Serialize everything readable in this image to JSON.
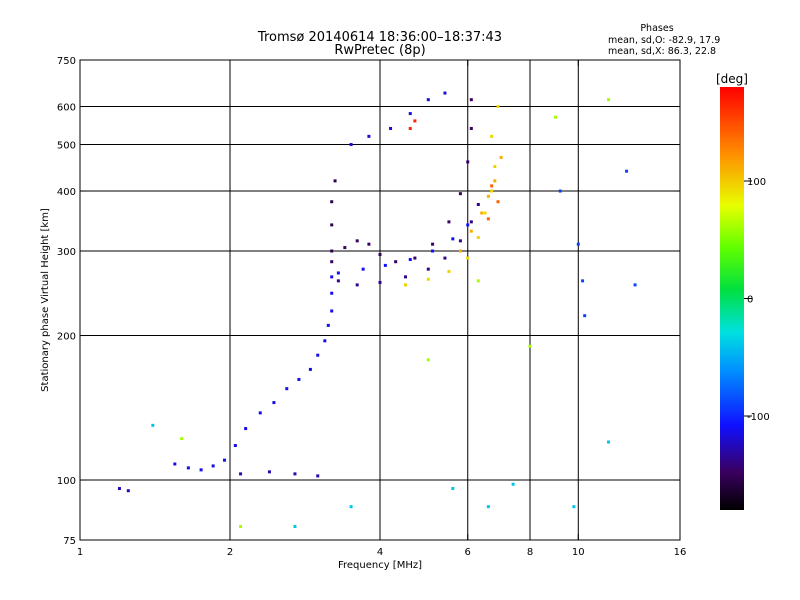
{
  "chart_data": {
    "type": "scatter",
    "title": "Tromsø 20140614 18:36:00–18:37:43",
    "subtitle": "RwPretec (8p)",
    "xlabel": "Frequency [MHz]",
    "ylabel": "Stationary phase Virtual Height [km]",
    "x_scale": "log",
    "y_scale": "log",
    "xlim": [
      1,
      16
    ],
    "ylim": [
      75,
      750
    ],
    "x_ticks": [
      1,
      2,
      4,
      6,
      8,
      10,
      16
    ],
    "y_ticks": [
      75,
      100,
      200,
      300,
      400,
      500,
      600,
      750
    ],
    "x_grid": [
      2,
      4,
      6,
      8,
      10
    ],
    "y_grid": [
      100,
      200,
      300,
      400,
      500,
      600
    ],
    "grid": true,
    "stats": {
      "heading": "Phases",
      "line_o": "mean, sd,O: -82.9, 17.9",
      "line_x": "mean, sd,X: 86.3, 22.8"
    },
    "colorbar": {
      "label": "[deg]",
      "min": -180,
      "max": 180,
      "ticks": [
        100,
        0,
        -100
      ]
    },
    "traces": [
      {
        "name": "",
        "phase_deg": -115,
        "points": [
          [
            1.55,
            108
          ],
          [
            1.65,
            106
          ],
          [
            1.75,
            105
          ],
          [
            1.85,
            107
          ],
          [
            1.95,
            110
          ],
          [
            2.05,
            118
          ],
          [
            2.15,
            128
          ],
          [
            2.3,
            138
          ],
          [
            2.45,
            145
          ],
          [
            2.6,
            155
          ],
          [
            2.75,
            162
          ],
          [
            2.9,
            170
          ],
          [
            3.0,
            182
          ],
          [
            3.1,
            195
          ],
          [
            3.15,
            210
          ],
          [
            3.2,
            225
          ],
          [
            3.2,
            245
          ],
          [
            3.2,
            265
          ]
        ]
      },
      {
        "name": "",
        "phase_deg": -130,
        "points": [
          [
            1.2,
            96
          ],
          [
            1.25,
            95
          ],
          [
            2.1,
            103
          ],
          [
            2.4,
            104
          ],
          [
            2.7,
            103
          ],
          [
            3.0,
            102
          ]
        ]
      },
      {
        "name": "",
        "phase_deg": -150,
        "points": [
          [
            3.2,
            285
          ],
          [
            3.4,
            305
          ],
          [
            3.6,
            315
          ],
          [
            3.8,
            310
          ],
          [
            4.0,
            295
          ],
          [
            4.3,
            285
          ],
          [
            4.7,
            290
          ],
          [
            5.1,
            310
          ],
          [
            5.5,
            345
          ],
          [
            5.8,
            395
          ],
          [
            6.0,
            460
          ],
          [
            6.1,
            540
          ],
          [
            6.1,
            620
          ]
        ]
      },
      {
        "name": "",
        "phase_deg": -140,
        "points": [
          [
            3.3,
            260
          ],
          [
            3.6,
            255
          ],
          [
            4.0,
            258
          ],
          [
            4.5,
            265
          ],
          [
            5.0,
            275
          ],
          [
            5.4,
            290
          ],
          [
            5.8,
            315
          ],
          [
            6.1,
            345
          ],
          [
            6.3,
            375
          ]
        ]
      },
      {
        "name": "",
        "phase_deg": -110,
        "points": [
          [
            3.3,
            270
          ],
          [
            3.7,
            275
          ],
          [
            4.1,
            280
          ],
          [
            4.6,
            288
          ],
          [
            5.1,
            300
          ],
          [
            5.6,
            318
          ],
          [
            6.0,
            340
          ]
        ]
      },
      {
        "name": "",
        "phase_deg": -155,
        "points": [
          [
            3.2,
            300
          ],
          [
            3.2,
            340
          ],
          [
            3.2,
            380
          ],
          [
            3.25,
            420
          ]
        ]
      },
      {
        "name": "",
        "phase_deg": -120,
        "points": [
          [
            3.5,
            500
          ],
          [
            3.8,
            520
          ],
          [
            4.2,
            540
          ],
          [
            4.6,
            580
          ],
          [
            5.0,
            620
          ],
          [
            5.4,
            640
          ]
        ]
      },
      {
        "name": "",
        "phase_deg": 95,
        "points": [
          [
            4.5,
            255
          ],
          [
            5.0,
            262
          ],
          [
            5.5,
            272
          ],
          [
            6.0,
            290
          ],
          [
            6.3,
            320
          ],
          [
            6.5,
            360
          ],
          [
            6.7,
            400
          ],
          [
            6.8,
            450
          ],
          [
            6.7,
            520
          ],
          [
            6.9,
            600
          ]
        ]
      },
      {
        "name": "",
        "phase_deg": 110,
        "points": [
          [
            5.8,
            300
          ],
          [
            6.1,
            330
          ],
          [
            6.4,
            360
          ],
          [
            6.6,
            390
          ],
          [
            6.8,
            420
          ],
          [
            7.0,
            470
          ]
        ]
      },
      {
        "name": "",
        "phase_deg": 140,
        "points": [
          [
            6.6,
            350
          ],
          [
            6.7,
            410
          ],
          [
            6.9,
            380
          ]
        ]
      },
      {
        "name": "",
        "phase_deg": 165,
        "points": [
          [
            4.6,
            540
          ],
          [
            4.7,
            560
          ]
        ]
      },
      {
        "name": "",
        "phase_deg": -90,
        "points": [
          [
            9.2,
            400
          ],
          [
            10.0,
            310
          ],
          [
            10.2,
            260
          ],
          [
            10.3,
            220
          ],
          [
            13.0,
            255
          ],
          [
            12.5,
            440
          ]
        ]
      },
      {
        "name": "",
        "phase_deg": -40,
        "points": [
          [
            1.4,
            130
          ],
          [
            2.7,
            80
          ],
          [
            3.5,
            88
          ],
          [
            5.6,
            96
          ],
          [
            6.6,
            88
          ],
          [
            7.4,
            98
          ],
          [
            9.8,
            88
          ],
          [
            11.5,
            120
          ]
        ]
      },
      {
        "name": "",
        "phase_deg": 60,
        "points": [
          [
            1.6,
            122
          ],
          [
            2.1,
            80
          ],
          [
            5.0,
            178
          ],
          [
            6.3,
            260
          ],
          [
            8.0,
            190
          ],
          [
            9.0,
            570
          ],
          [
            11.5,
            620
          ]
        ]
      }
    ]
  }
}
